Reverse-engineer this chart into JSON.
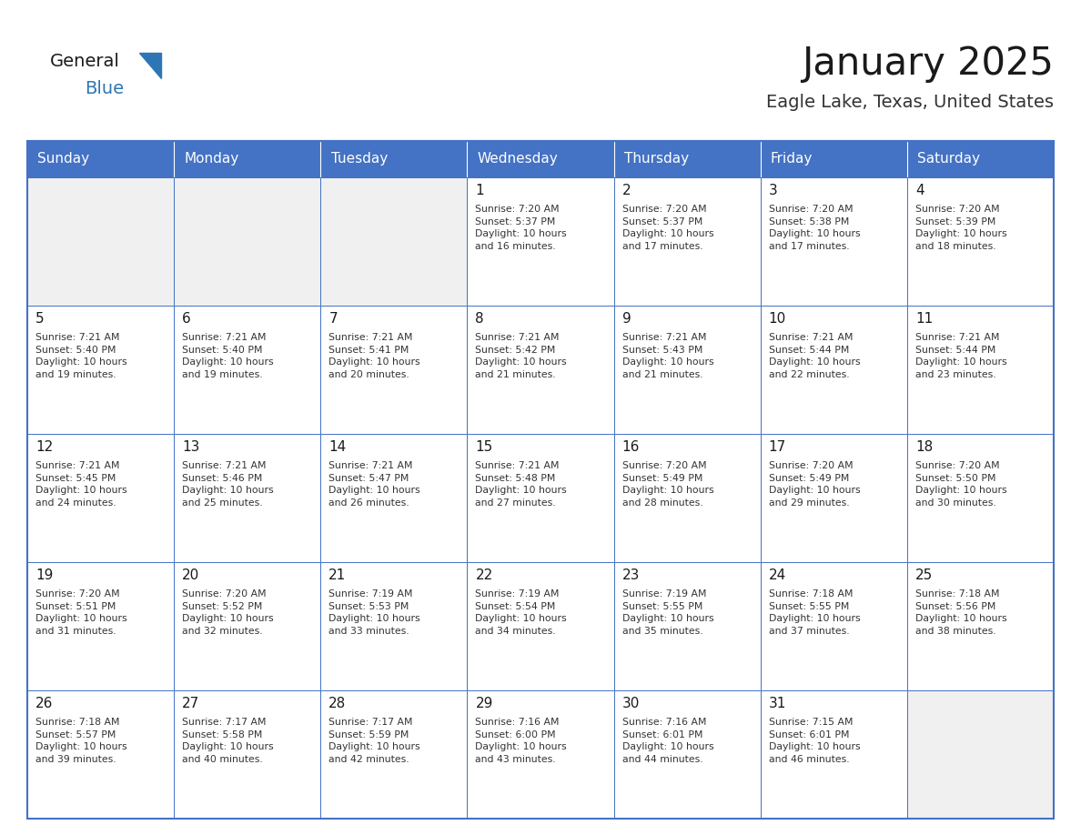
{
  "title": "January 2025",
  "subtitle": "Eagle Lake, Texas, United States",
  "days_of_week": [
    "Sunday",
    "Monday",
    "Tuesday",
    "Wednesday",
    "Thursday",
    "Friday",
    "Saturday"
  ],
  "header_bg": "#4472C4",
  "header_text": "#FFFFFF",
  "cell_bg": "#FFFFFF",
  "cell_gray_bg": "#F0F0F0",
  "border_color": "#4472C4",
  "day_num_color": "#1A1A1A",
  "info_color": "#333333",
  "title_color": "#1A1A1A",
  "subtitle_color": "#333333",
  "logo_general_color": "#1A1A1A",
  "logo_blue_color": "#2E75B6",
  "weeks": [
    [
      {
        "day": null,
        "info": ""
      },
      {
        "day": null,
        "info": ""
      },
      {
        "day": null,
        "info": ""
      },
      {
        "day": 1,
        "info": "Sunrise: 7:20 AM\nSunset: 5:37 PM\nDaylight: 10 hours\nand 16 minutes."
      },
      {
        "day": 2,
        "info": "Sunrise: 7:20 AM\nSunset: 5:37 PM\nDaylight: 10 hours\nand 17 minutes."
      },
      {
        "day": 3,
        "info": "Sunrise: 7:20 AM\nSunset: 5:38 PM\nDaylight: 10 hours\nand 17 minutes."
      },
      {
        "day": 4,
        "info": "Sunrise: 7:20 AM\nSunset: 5:39 PM\nDaylight: 10 hours\nand 18 minutes."
      }
    ],
    [
      {
        "day": 5,
        "info": "Sunrise: 7:21 AM\nSunset: 5:40 PM\nDaylight: 10 hours\nand 19 minutes."
      },
      {
        "day": 6,
        "info": "Sunrise: 7:21 AM\nSunset: 5:40 PM\nDaylight: 10 hours\nand 19 minutes."
      },
      {
        "day": 7,
        "info": "Sunrise: 7:21 AM\nSunset: 5:41 PM\nDaylight: 10 hours\nand 20 minutes."
      },
      {
        "day": 8,
        "info": "Sunrise: 7:21 AM\nSunset: 5:42 PM\nDaylight: 10 hours\nand 21 minutes."
      },
      {
        "day": 9,
        "info": "Sunrise: 7:21 AM\nSunset: 5:43 PM\nDaylight: 10 hours\nand 21 minutes."
      },
      {
        "day": 10,
        "info": "Sunrise: 7:21 AM\nSunset: 5:44 PM\nDaylight: 10 hours\nand 22 minutes."
      },
      {
        "day": 11,
        "info": "Sunrise: 7:21 AM\nSunset: 5:44 PM\nDaylight: 10 hours\nand 23 minutes."
      }
    ],
    [
      {
        "day": 12,
        "info": "Sunrise: 7:21 AM\nSunset: 5:45 PM\nDaylight: 10 hours\nand 24 minutes."
      },
      {
        "day": 13,
        "info": "Sunrise: 7:21 AM\nSunset: 5:46 PM\nDaylight: 10 hours\nand 25 minutes."
      },
      {
        "day": 14,
        "info": "Sunrise: 7:21 AM\nSunset: 5:47 PM\nDaylight: 10 hours\nand 26 minutes."
      },
      {
        "day": 15,
        "info": "Sunrise: 7:21 AM\nSunset: 5:48 PM\nDaylight: 10 hours\nand 27 minutes."
      },
      {
        "day": 16,
        "info": "Sunrise: 7:20 AM\nSunset: 5:49 PM\nDaylight: 10 hours\nand 28 minutes."
      },
      {
        "day": 17,
        "info": "Sunrise: 7:20 AM\nSunset: 5:49 PM\nDaylight: 10 hours\nand 29 minutes."
      },
      {
        "day": 18,
        "info": "Sunrise: 7:20 AM\nSunset: 5:50 PM\nDaylight: 10 hours\nand 30 minutes."
      }
    ],
    [
      {
        "day": 19,
        "info": "Sunrise: 7:20 AM\nSunset: 5:51 PM\nDaylight: 10 hours\nand 31 minutes."
      },
      {
        "day": 20,
        "info": "Sunrise: 7:20 AM\nSunset: 5:52 PM\nDaylight: 10 hours\nand 32 minutes."
      },
      {
        "day": 21,
        "info": "Sunrise: 7:19 AM\nSunset: 5:53 PM\nDaylight: 10 hours\nand 33 minutes."
      },
      {
        "day": 22,
        "info": "Sunrise: 7:19 AM\nSunset: 5:54 PM\nDaylight: 10 hours\nand 34 minutes."
      },
      {
        "day": 23,
        "info": "Sunrise: 7:19 AM\nSunset: 5:55 PM\nDaylight: 10 hours\nand 35 minutes."
      },
      {
        "day": 24,
        "info": "Sunrise: 7:18 AM\nSunset: 5:55 PM\nDaylight: 10 hours\nand 37 minutes."
      },
      {
        "day": 25,
        "info": "Sunrise: 7:18 AM\nSunset: 5:56 PM\nDaylight: 10 hours\nand 38 minutes."
      }
    ],
    [
      {
        "day": 26,
        "info": "Sunrise: 7:18 AM\nSunset: 5:57 PM\nDaylight: 10 hours\nand 39 minutes."
      },
      {
        "day": 27,
        "info": "Sunrise: 7:17 AM\nSunset: 5:58 PM\nDaylight: 10 hours\nand 40 minutes."
      },
      {
        "day": 28,
        "info": "Sunrise: 7:17 AM\nSunset: 5:59 PM\nDaylight: 10 hours\nand 42 minutes."
      },
      {
        "day": 29,
        "info": "Sunrise: 7:16 AM\nSunset: 6:00 PM\nDaylight: 10 hours\nand 43 minutes."
      },
      {
        "day": 30,
        "info": "Sunrise: 7:16 AM\nSunset: 6:01 PM\nDaylight: 10 hours\nand 44 minutes."
      },
      {
        "day": 31,
        "info": "Sunrise: 7:15 AM\nSunset: 6:01 PM\nDaylight: 10 hours\nand 46 minutes."
      },
      {
        "day": null,
        "info": ""
      }
    ]
  ]
}
